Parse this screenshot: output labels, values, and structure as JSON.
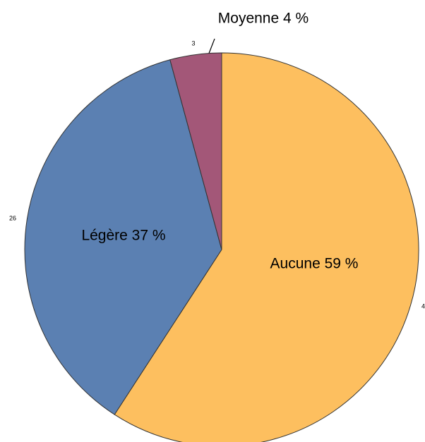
{
  "chart_data": {
    "type": "pie",
    "categories": [
      "Aucune",
      "Légère",
      "Moyenne"
    ],
    "values": [
      42,
      26,
      3
    ],
    "labels": [
      "Aucune 59 %",
      "Légère 37 %",
      "Moyenne 4 %"
    ],
    "colors": [
      "#fdbf5f",
      "#5b80b2",
      "#a35778"
    ]
  }
}
